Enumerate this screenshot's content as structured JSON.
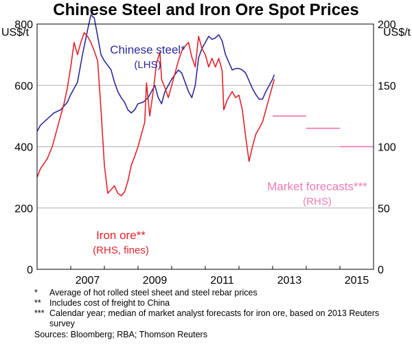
{
  "title": "Chinese Steel and Iron Ore Spot Prices",
  "chart_data": {
    "type": "line",
    "title": "Chinese Steel and Iron Ore Spot Prices",
    "y_left": {
      "unit_label": "US$/t",
      "range": [
        0,
        800
      ],
      "ticks": [
        0,
        200,
        400,
        600,
        800
      ]
    },
    "y_right": {
      "unit_label": "US$/t",
      "range": [
        0,
        200
      ],
      "ticks": [
        0,
        50,
        100,
        150,
        200
      ]
    },
    "x": {
      "range": [
        2006.0,
        2016.0
      ],
      "tick_labels": [
        "2007",
        "2009",
        "2011",
        "2013",
        "2015"
      ],
      "tick_positions": [
        2007,
        2009,
        2011,
        2013,
        2015
      ]
    },
    "series": [
      {
        "name": "Chinese steel*",
        "axis": "left",
        "color": "#2a2a9a",
        "points": [
          [
            2006.0,
            450
          ],
          [
            2006.1,
            470
          ],
          [
            2006.3,
            490
          ],
          [
            2006.5,
            510
          ],
          [
            2006.7,
            520
          ],
          [
            2006.9,
            545
          ],
          [
            2007.0,
            570
          ],
          [
            2007.2,
            610
          ],
          [
            2007.35,
            700
          ],
          [
            2007.5,
            780
          ],
          [
            2007.6,
            830
          ],
          [
            2007.7,
            820
          ],
          [
            2007.8,
            760
          ],
          [
            2007.9,
            700
          ],
          [
            2008.0,
            680
          ],
          [
            2008.1,
            665
          ],
          [
            2008.2,
            650
          ],
          [
            2008.3,
            610
          ],
          [
            2008.4,
            580
          ],
          [
            2008.5,
            560
          ],
          [
            2008.6,
            545
          ],
          [
            2008.7,
            520
          ],
          [
            2008.8,
            510
          ],
          [
            2008.9,
            520
          ],
          [
            2009.0,
            540
          ],
          [
            2009.15,
            545
          ],
          [
            2009.3,
            560
          ],
          [
            2009.5,
            600
          ],
          [
            2009.6,
            560
          ],
          [
            2009.7,
            540
          ],
          [
            2009.8,
            580
          ],
          [
            2010.0,
            620
          ],
          [
            2010.2,
            650
          ],
          [
            2010.3,
            640
          ],
          [
            2010.4,
            610
          ],
          [
            2010.5,
            580
          ],
          [
            2010.6,
            560
          ],
          [
            2010.7,
            600
          ],
          [
            2010.8,
            690
          ],
          [
            2010.9,
            720
          ],
          [
            2011.0,
            740
          ],
          [
            2011.1,
            760
          ],
          [
            2011.2,
            750
          ],
          [
            2011.3,
            755
          ],
          [
            2011.4,
            765
          ],
          [
            2011.5,
            745
          ],
          [
            2011.6,
            700
          ],
          [
            2011.8,
            650
          ],
          [
            2011.9,
            655
          ],
          [
            2012.0,
            655
          ],
          [
            2012.1,
            650
          ],
          [
            2012.2,
            640
          ],
          [
            2012.3,
            615
          ],
          [
            2012.4,
            590
          ],
          [
            2012.5,
            570
          ],
          [
            2012.6,
            555
          ],
          [
            2012.7,
            555
          ],
          [
            2012.8,
            580
          ],
          [
            2012.9,
            600
          ],
          [
            2013.0,
            620
          ],
          [
            2013.05,
            635
          ]
        ]
      },
      {
        "name": "Iron ore**",
        "axis": "right",
        "color": "#e0222a",
        "points": [
          [
            2006.0,
            75
          ],
          [
            2006.1,
            82
          ],
          [
            2006.3,
            90
          ],
          [
            2006.45,
            100
          ],
          [
            2006.6,
            115
          ],
          [
            2006.8,
            135
          ],
          [
            2006.9,
            148
          ],
          [
            2007.0,
            165
          ],
          [
            2007.1,
            185
          ],
          [
            2007.2,
            175
          ],
          [
            2007.3,
            185
          ],
          [
            2007.4,
            193
          ],
          [
            2007.5,
            190
          ],
          [
            2007.6,
            185
          ],
          [
            2007.7,
            178
          ],
          [
            2007.8,
            170
          ],
          [
            2007.9,
            130
          ],
          [
            2008.0,
            85
          ],
          [
            2008.1,
            62
          ],
          [
            2008.2,
            65
          ],
          [
            2008.3,
            68
          ],
          [
            2008.4,
            62
          ],
          [
            2008.5,
            60
          ],
          [
            2008.6,
            63
          ],
          [
            2008.7,
            72
          ],
          [
            2008.8,
            85
          ],
          [
            2008.9,
            92
          ],
          [
            2009.0,
            100
          ],
          [
            2009.1,
            110
          ],
          [
            2009.2,
            120
          ],
          [
            2009.25,
            152
          ],
          [
            2009.35,
            125
          ],
          [
            2009.45,
            145
          ],
          [
            2009.55,
            168
          ],
          [
            2009.65,
            177
          ],
          [
            2009.7,
            155
          ],
          [
            2009.8,
            148
          ],
          [
            2009.9,
            140
          ],
          [
            2010.0,
            150
          ],
          [
            2010.1,
            160
          ],
          [
            2010.2,
            170
          ],
          [
            2010.3,
            178
          ],
          [
            2010.4,
            182
          ],
          [
            2010.5,
            185
          ],
          [
            2010.6,
            173
          ],
          [
            2010.7,
            165
          ],
          [
            2010.8,
            190
          ],
          [
            2010.9,
            180
          ],
          [
            2011.0,
            175
          ],
          [
            2011.1,
            165
          ],
          [
            2011.2,
            172
          ],
          [
            2011.3,
            165
          ],
          [
            2011.4,
            172
          ],
          [
            2011.5,
            162
          ],
          [
            2011.55,
            130
          ],
          [
            2011.65,
            138
          ],
          [
            2011.8,
            145
          ],
          [
            2011.9,
            140
          ],
          [
            2012.0,
            142
          ],
          [
            2012.1,
            130
          ],
          [
            2012.2,
            108
          ],
          [
            2012.3,
            88
          ],
          [
            2012.4,
            100
          ],
          [
            2012.5,
            110
          ],
          [
            2012.6,
            115
          ],
          [
            2012.7,
            120
          ],
          [
            2012.8,
            130
          ],
          [
            2012.9,
            140
          ],
          [
            2013.0,
            150
          ],
          [
            2013.05,
            155
          ]
        ]
      },
      {
        "name": "Market forecasts***",
        "axis": "right",
        "color": "#f07ab4",
        "segments": [
          {
            "year": 2013,
            "value": 125
          },
          {
            "year": 2014,
            "value": 115
          },
          {
            "year": 2015,
            "value": 100
          }
        ]
      }
    ],
    "annotations": {
      "steel": [
        "Chinese steel*",
        "(LHS)"
      ],
      "iron_ore": [
        "Iron ore**",
        "(RHS, fines)"
      ],
      "forecast": [
        "Market forecasts***",
        "(RHS)"
      ]
    }
  },
  "footnotes": [
    {
      "mark": "*",
      "text": "Average of hot rolled steel sheet and steel rebar prices"
    },
    {
      "mark": "**",
      "text": "Includes cost of freight to China"
    },
    {
      "mark": "***",
      "text": "Calendar year; median of market analyst forecasts for iron ore, based on 2013 Reuters survey"
    }
  ],
  "sources": "Sources: Bloomberg; RBA; Thomson Reuters"
}
